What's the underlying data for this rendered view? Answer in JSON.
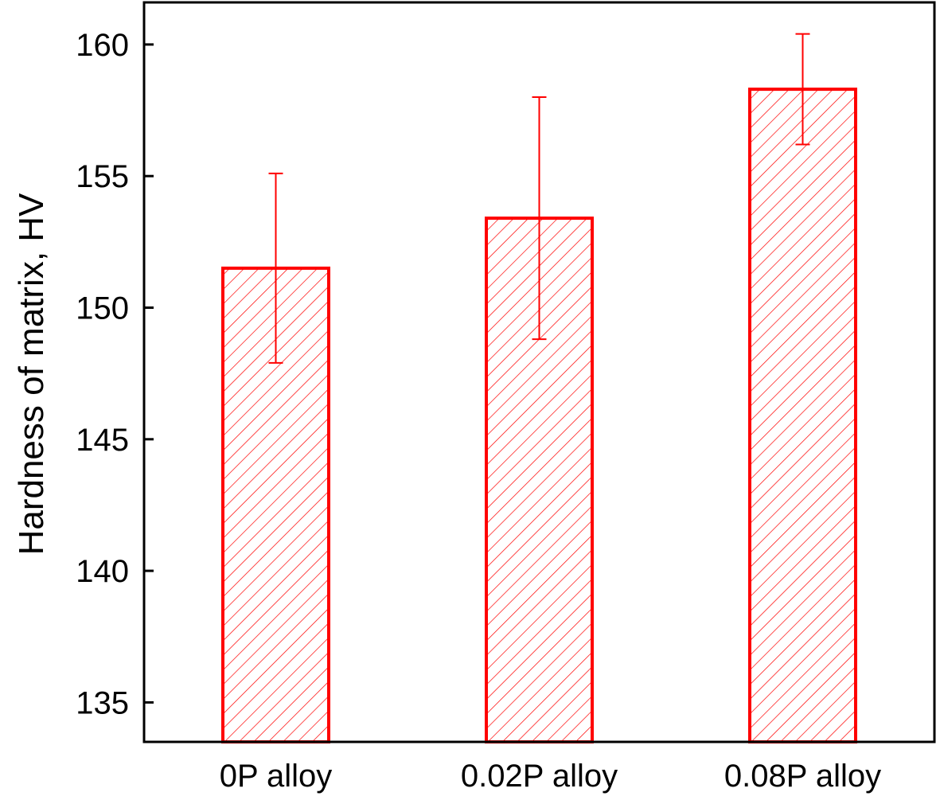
{
  "chart_data": {
    "type": "bar",
    "categories": [
      "0P alloy",
      "0.02P alloy",
      "0.08P alloy"
    ],
    "values": [
      151.5,
      153.4,
      158.3
    ],
    "errors": [
      3.6,
      4.6,
      2.1
    ],
    "ylabel": "Hardness of matrix, HV",
    "xlabel": "",
    "ylim": [
      133.5,
      161.6
    ],
    "yticks": [
      135,
      140,
      145,
      150,
      155,
      160
    ],
    "bar_fill": "hatched",
    "grid": false,
    "colors": {
      "bar": "#ff0000",
      "error_bar": "#ff0000",
      "axis": "#000000"
    }
  }
}
